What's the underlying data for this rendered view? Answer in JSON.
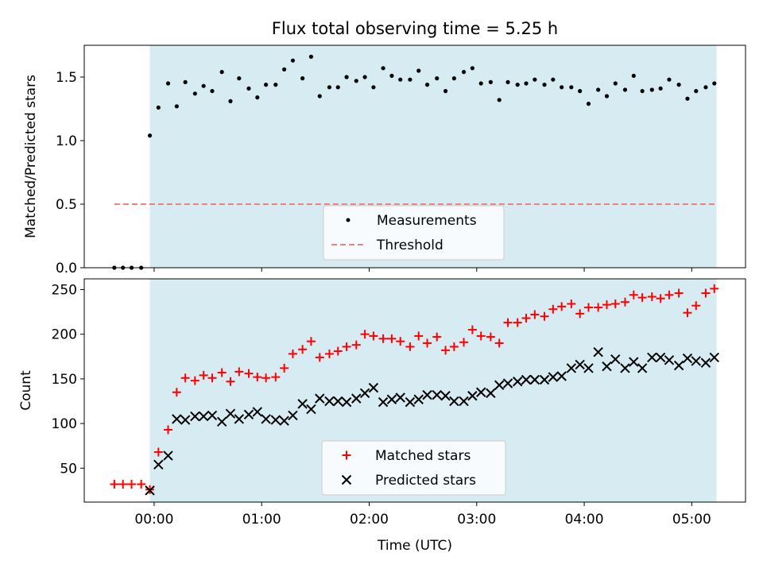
{
  "chart_data": [
    {
      "type": "scatter",
      "title": "Flux total observing time = 5.25 h",
      "xlabel": "",
      "ylabel": "Matched/Predicted stars",
      "xlim": [
        -0.65,
        5.5
      ],
      "ylim": [
        0,
        1.75
      ],
      "yticks": [
        0.0,
        0.5,
        1.0,
        1.5
      ],
      "ytick_labels": [
        "0.0",
        "0.5",
        "1.0",
        "1.5"
      ],
      "observing_window": [
        -0.04,
        5.23
      ],
      "threshold": {
        "name": "Threshold",
        "value": 0.5,
        "x_range": [
          -0.37,
          5.23
        ],
        "color": "#f08080"
      },
      "series": [
        {
          "name": "Measurements",
          "color": "#000000",
          "x": [
            -0.37,
            -0.29,
            -0.21,
            -0.12,
            -0.04,
            0.04,
            0.13,
            0.21,
            0.29,
            0.38,
            0.46,
            0.54,
            0.63,
            0.71,
            0.79,
            0.88,
            0.96,
            1.04,
            1.13,
            1.21,
            1.29,
            1.38,
            1.46,
            1.54,
            1.63,
            1.71,
            1.79,
            1.88,
            1.96,
            2.04,
            2.13,
            2.21,
            2.29,
            2.38,
            2.46,
            2.54,
            2.63,
            2.71,
            2.79,
            2.88,
            2.96,
            3.04,
            3.13,
            3.21,
            3.29,
            3.38,
            3.46,
            3.54,
            3.63,
            3.71,
            3.79,
            3.88,
            3.96,
            4.04,
            4.13,
            4.21,
            4.29,
            4.38,
            4.46,
            4.54,
            4.63,
            4.71,
            4.79,
            4.88,
            4.96,
            5.04,
            5.13,
            5.21
          ],
          "y": [
            0,
            0,
            0,
            0,
            1.04,
            1.26,
            1.45,
            1.27,
            1.46,
            1.37,
            1.43,
            1.39,
            1.54,
            1.31,
            1.49,
            1.41,
            1.34,
            1.44,
            1.44,
            1.56,
            1.63,
            1.49,
            1.66,
            1.35,
            1.42,
            1.42,
            1.5,
            1.47,
            1.5,
            1.42,
            1.57,
            1.51,
            1.48,
            1.48,
            1.55,
            1.44,
            1.49,
            1.39,
            1.49,
            1.54,
            1.57,
            1.45,
            1.46,
            1.32,
            1.46,
            1.44,
            1.45,
            1.48,
            1.44,
            1.48,
            1.42,
            1.42,
            1.39,
            1.29,
            1.4,
            1.35,
            1.45,
            1.4,
            1.51,
            1.39,
            1.4,
            1.41,
            1.48,
            1.44,
            1.33,
            1.39,
            1.42,
            1.45
          ]
        }
      ],
      "legend": {
        "placement": "lower-center",
        "entries": [
          "Measurements",
          "Threshold"
        ]
      }
    },
    {
      "type": "scatter",
      "title": "",
      "xlabel": "Time (UTC)",
      "ylabel": "Count",
      "xlim": [
        -0.65,
        5.5
      ],
      "ylim": [
        12,
        262
      ],
      "yticks": [
        50,
        100,
        150,
        200,
        250
      ],
      "ytick_labels": [
        "50",
        "100",
        "150",
        "200",
        "250"
      ],
      "xticks": [
        0,
        1,
        2,
        3,
        4,
        5
      ],
      "xtick_labels": [
        "00:00",
        "01:00",
        "02:00",
        "03:00",
        "04:00",
        "05:00"
      ],
      "observing_window": [
        -0.04,
        5.23
      ],
      "series": [
        {
          "name": "Matched stars",
          "marker": "plus",
          "color": "#ff0000",
          "x": [
            -0.37,
            -0.29,
            -0.21,
            -0.12,
            -0.04,
            0.04,
            0.13,
            0.21,
            0.29,
            0.38,
            0.46,
            0.54,
            0.63,
            0.71,
            0.79,
            0.88,
            0.96,
            1.04,
            1.13,
            1.21,
            1.29,
            1.38,
            1.46,
            1.54,
            1.63,
            1.71,
            1.79,
            1.88,
            1.96,
            2.04,
            2.13,
            2.21,
            2.29,
            2.38,
            2.46,
            2.54,
            2.63,
            2.71,
            2.79,
            2.88,
            2.96,
            3.04,
            3.13,
            3.21,
            3.29,
            3.38,
            3.46,
            3.54,
            3.63,
            3.71,
            3.79,
            3.88,
            3.96,
            4.04,
            4.13,
            4.21,
            4.29,
            4.38,
            4.46,
            4.54,
            4.63,
            4.71,
            4.79,
            4.88,
            4.96,
            5.04,
            5.13,
            5.21
          ],
          "y": [
            32,
            32,
            32,
            32,
            26,
            68,
            93,
            135,
            151,
            148,
            154,
            151,
            157,
            147,
            158,
            156,
            152,
            151,
            152,
            162,
            178,
            183,
            192,
            174,
            178,
            181,
            186,
            188,
            200,
            198,
            195,
            195,
            192,
            186,
            198,
            190,
            197,
            182,
            186,
            191,
            205,
            198,
            197,
            190,
            213,
            213,
            218,
            222,
            220,
            228,
            231,
            234,
            223,
            230,
            230,
            233,
            234,
            236,
            244,
            241,
            242,
            240,
            244,
            246,
            224,
            232,
            246,
            251
          ]
        },
        {
          "name": "Predicted stars",
          "marker": "x",
          "color": "#000000",
          "x": [
            -0.04,
            0.04,
            0.13,
            0.21,
            0.29,
            0.38,
            0.46,
            0.54,
            0.63,
            0.71,
            0.79,
            0.88,
            0.96,
            1.04,
            1.13,
            1.21,
            1.29,
            1.38,
            1.46,
            1.54,
            1.63,
            1.71,
            1.79,
            1.88,
            1.96,
            2.04,
            2.13,
            2.21,
            2.29,
            2.38,
            2.46,
            2.54,
            2.63,
            2.71,
            2.79,
            2.88,
            2.96,
            3.04,
            3.13,
            3.21,
            3.29,
            3.38,
            3.46,
            3.54,
            3.63,
            3.71,
            3.79,
            3.88,
            3.96,
            4.04,
            4.13,
            4.21,
            4.29,
            4.38,
            4.46,
            4.54,
            4.63,
            4.71,
            4.79,
            4.88,
            4.96,
            5.04,
            5.13,
            5.21
          ],
          "y": [
            25,
            54,
            64,
            105,
            104,
            108,
            108,
            109,
            102,
            111,
            105,
            110,
            113,
            105,
            104,
            103,
            109,
            122,
            116,
            128,
            125,
            125,
            124,
            128,
            134,
            140,
            124,
            127,
            129,
            124,
            127,
            132,
            132,
            131,
            125,
            125,
            131,
            135,
            134,
            143,
            145,
            147,
            149,
            149,
            149,
            152,
            153,
            162,
            166,
            162,
            180,
            164,
            172,
            162,
            169,
            162,
            174,
            174,
            171,
            165,
            173,
            170,
            168,
            174
          ]
        }
      ],
      "legend": {
        "placement": "lower-center",
        "entries": [
          "Matched stars",
          "Predicted stars"
        ]
      }
    }
  ]
}
